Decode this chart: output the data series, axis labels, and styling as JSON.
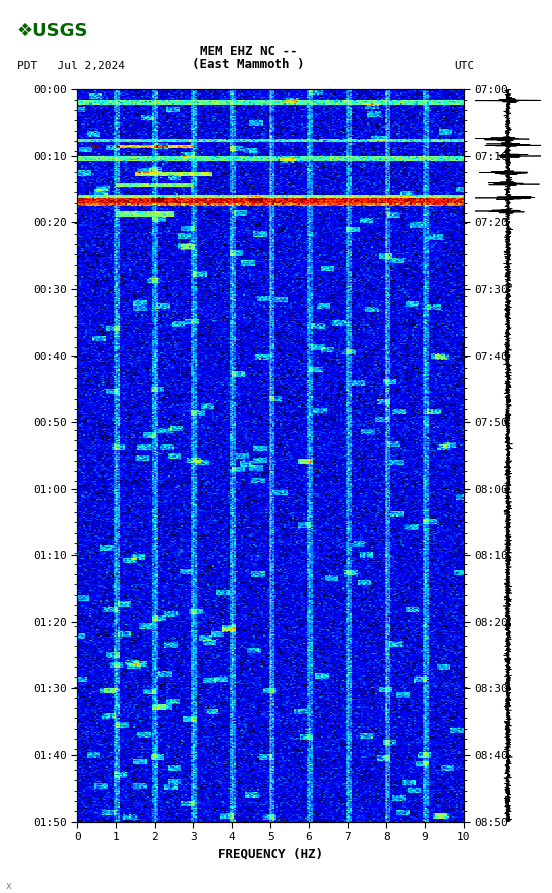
{
  "title_line1": "MEM EHZ NC --",
  "title_line2": "(East Mammoth )",
  "left_label": "PDT   Jul 2,2024",
  "right_label": "UTC",
  "xlabel": "FREQUENCY (HZ)",
  "freq_min": 0,
  "freq_max": 10,
  "freq_ticks": [
    0,
    1,
    2,
    3,
    4,
    5,
    6,
    7,
    8,
    9,
    10
  ],
  "left_time_labels": [
    "00:00",
    "00:10",
    "00:20",
    "00:30",
    "00:40",
    "00:50",
    "01:00",
    "01:10",
    "01:20",
    "01:30",
    "01:40",
    "01:50"
  ],
  "right_time_labels": [
    "07:00",
    "07:10",
    "07:20",
    "07:30",
    "07:40",
    "07:50",
    "08:00",
    "08:10",
    "08:20",
    "08:30",
    "08:40",
    "08:50"
  ],
  "n_time_bins": 660,
  "n_freq_bins": 200,
  "colormap": "jet",
  "vmin": -10,
  "vmax": 40,
  "figsize": [
    5.52,
    8.93
  ],
  "dpi": 100
}
